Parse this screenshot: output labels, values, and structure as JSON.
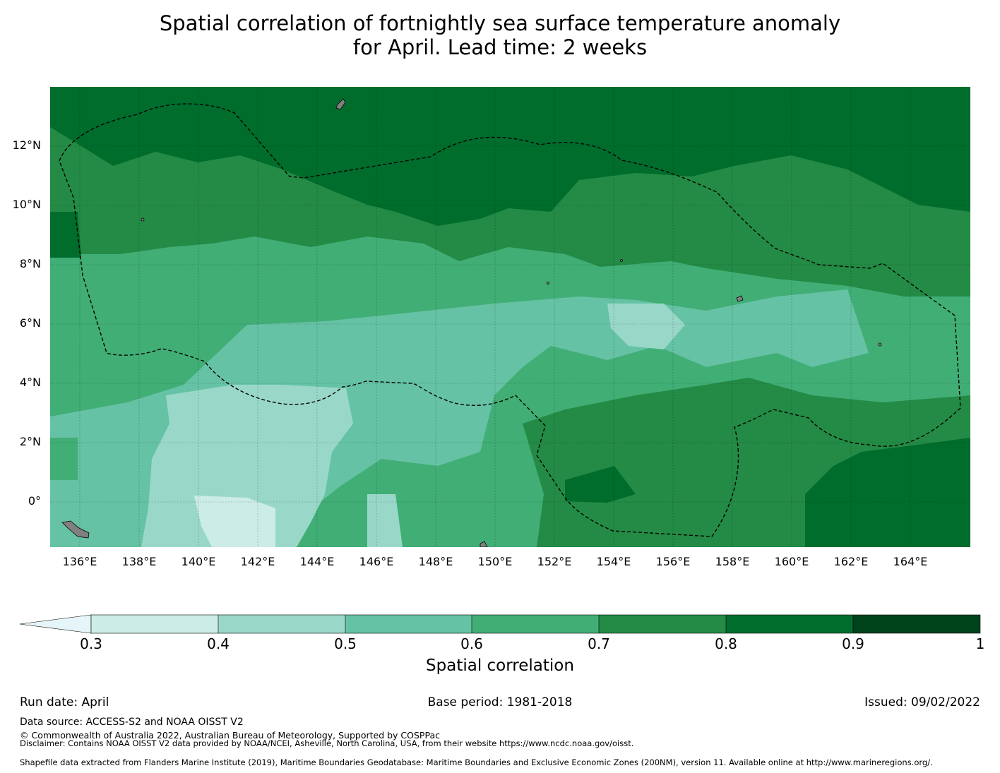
{
  "title": {
    "line1": "Spatial correlation of fortnightly sea surface temperature anomaly",
    "line2": "for April. Lead time: 2 weeks"
  },
  "map": {
    "lat_ticks": [
      "12°N",
      "10°N",
      "8°N",
      "6°N",
      "4°N",
      "2°N",
      "0°"
    ],
    "lon_ticks": [
      "136°E",
      "138°E",
      "140°E",
      "142°E",
      "144°E",
      "146°E",
      "148°E",
      "150°E",
      "152°E",
      "154°E",
      "156°E",
      "158°E",
      "160°E",
      "162°E",
      "164°E"
    ],
    "lat_range": [
      -1.5,
      14
    ],
    "lon_range": [
      134,
      165
    ],
    "land_color": "#808080",
    "eez_boundary": "dashed-black"
  },
  "colorbar": {
    "title": "Spatial correlation",
    "ticks": [
      "0.3",
      "0.4",
      "0.5",
      "0.6",
      "0.7",
      "0.8",
      "0.9",
      "1"
    ],
    "colors": [
      "#e5f5f9",
      "#ccece6",
      "#99d8c9",
      "#66c2a4",
      "#41ae76",
      "#238b45",
      "#006d2c",
      "#00441b"
    ],
    "extend": "min"
  },
  "footer": {
    "run_date": "Run date: April",
    "base_period": "Base period: 1981-2018",
    "issued": "Issued: 09/02/2022",
    "data_source": "Data source: ACCESS-S2 and NOAA OISST V2",
    "copyright": "© Commonwealth of Australia 2022, Australian Bureau of Meteorology, Supported by COSPPac",
    "disclaimer": "Disclaimer: Contains NOAA OISST V2 data provided by NOAA/NCEI, Asheville, North Carolina, USA, from their website https://www.ncdc.noaa.gov/oisst.",
    "shapefile": "Shapefile data extracted from Flanders Marine Institute (2019), Maritime Boundaries Geodatabase: Maritime Boundaries and Exclusive Economic Zones (200NM), version 11. Available online at http://www.marineregions.org/."
  }
}
